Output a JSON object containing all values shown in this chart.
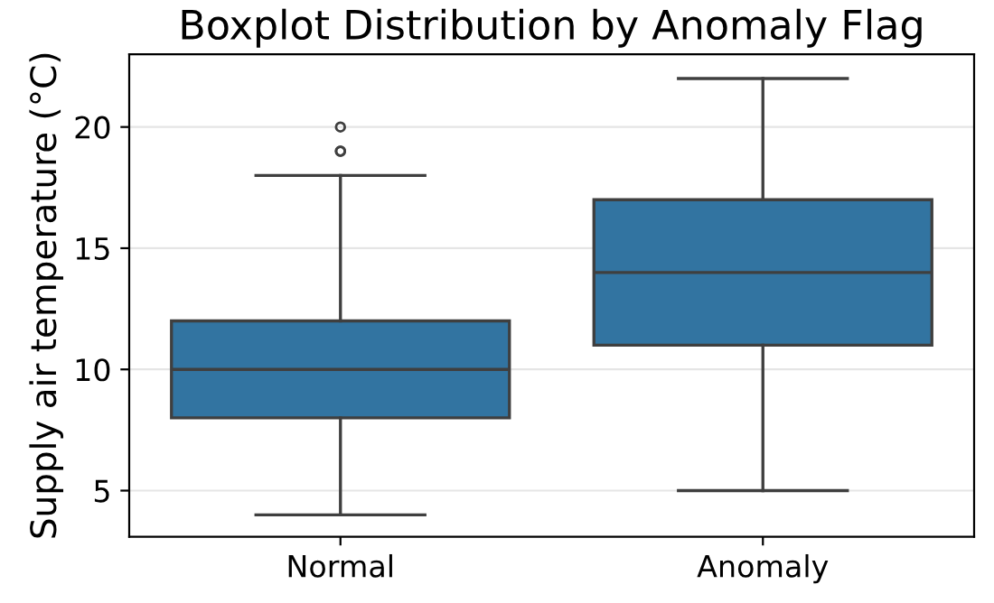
{
  "chart_data": {
    "type": "box",
    "title": "Boxplot Distribution by Anomaly Flag",
    "ylabel": "Supply air temperature (°C)",
    "categories": [
      "Normal",
      "Anomaly"
    ],
    "boxes": [
      {
        "low": 4,
        "q1": 8,
        "median": 10,
        "q3": 12,
        "high": 18,
        "outliers": [
          19,
          19,
          20
        ]
      },
      {
        "low": 5,
        "q1": 11,
        "median": 14,
        "q3": 17,
        "high": 22
      }
    ],
    "color": "#3274a1",
    "ylim": [
      3.1,
      23
    ],
    "yticks": [
      5,
      10,
      15,
      20
    ],
    "grid": "y"
  }
}
